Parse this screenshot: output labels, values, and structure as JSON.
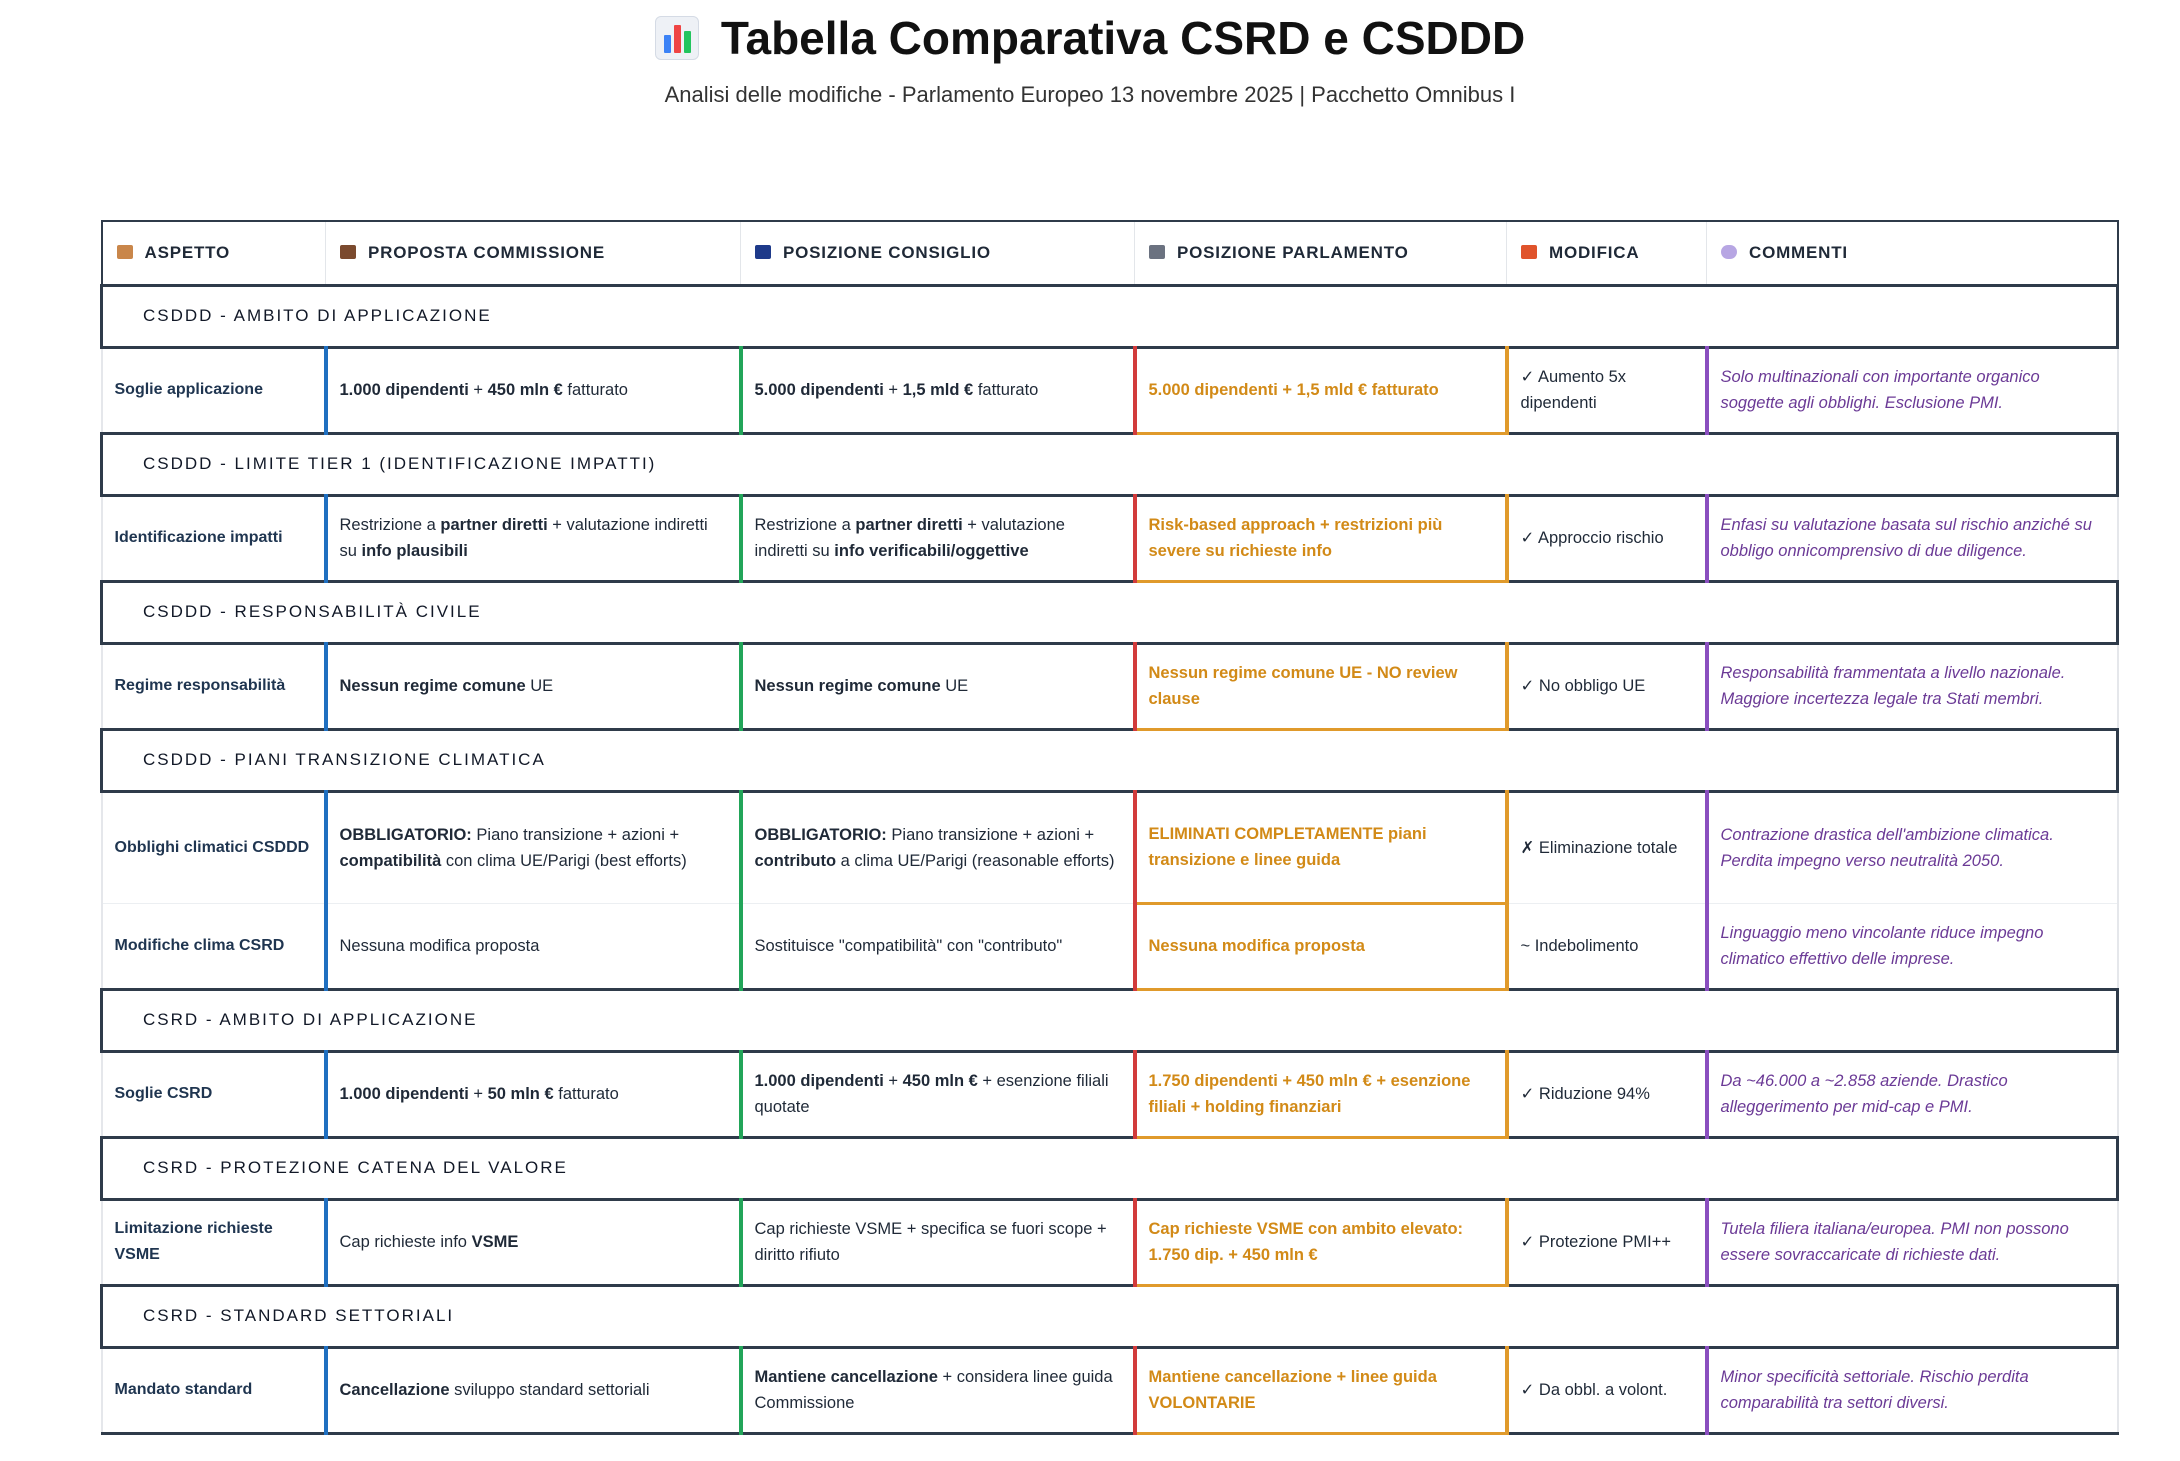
{
  "header": {
    "title": "Tabella Comparativa CSRD e CSDDD",
    "subtitle": "Analisi delle modifiche - Parlamento Europeo 13 novembre 2025 | Pacchetto Omnibus I"
  },
  "columns": [
    {
      "label": "ASPETTO",
      "icon": "clipboard-icon",
      "color": "#c9864a"
    },
    {
      "label": "PROPOSTA COMMISSIONE",
      "icon": "briefcase-icon",
      "color": "#7b4a2e"
    },
    {
      "label": "POSIZIONE CONSIGLIO",
      "icon": "eu-flag-icon",
      "color": "#1e3a8a"
    },
    {
      "label": "POSIZIONE PARLAMENTO",
      "icon": "classical-building-icon",
      "color": "#6b7280"
    },
    {
      "label": "MODIFICA",
      "icon": "pencil-icon",
      "color": "#e0532b"
    },
    {
      "label": "COMMENTI",
      "icon": "speech-bubble-icon",
      "color": "#b7a6e3"
    }
  ],
  "colors": {
    "border": "#2f3b4a",
    "commissione": "#1f6fc0",
    "consiglio": "#22a559",
    "parlamento_left": "#d23b3b",
    "parlamento_frame": "#e09a2b",
    "parlamento_text": "#d28a17",
    "commenti": "#8a4fbf"
  },
  "sections": [
    {
      "title": "CSDDD - AMBITO DI APPLICAZIONE",
      "rows": [
        {
          "aspetto": "Soglie applicazione",
          "commissione": "<b>1.000 dipendenti</b> + <b>450 mln €</b> fatturato",
          "consiglio": "<b>5.000 dipendenti</b> + <b>1,5 mld €</b> fatturato",
          "parlamento": "5.000 dipendenti + 1,5 mld € fatturato",
          "modifica": "✓ Aumento 5x dipendenti",
          "commenti": "Solo multinazionali con importante organico soggette agli obblighi. Esclusione PMI."
        }
      ]
    },
    {
      "title": "CSDDD - LIMITE TIER 1 (IDENTIFICAZIONE IMPATTI)",
      "rows": [
        {
          "aspetto": "Identificazione impatti",
          "commissione": "Restrizione a <b>partner diretti</b> + valutazione indiretti su <b>info plausibili</b>",
          "consiglio": "Restrizione a <b>partner diretti</b> + valutazione indiretti su <b>info verificabili/oggettive</b>",
          "parlamento": "<b>Risk-based approach</b> + <b>restrizioni più severe</b> su richieste info",
          "modifica": "✓ Approccio rischio",
          "commenti": "Enfasi su valutazione basata sul rischio anziché su obbligo onnicomprensivo di due diligence."
        }
      ]
    },
    {
      "title": "CSDDD - RESPONSABILITÀ CIVILE",
      "rows": [
        {
          "aspetto": "Regime responsabilità",
          "commissione": "<b>Nessun regime comune</b> UE",
          "consiglio": "<b>Nessun regime comune</b> UE",
          "parlamento": "<b>Nessun regime comune</b> UE - <b>NO review clause</b>",
          "modifica": "✓ No obbligo UE",
          "commenti": "Responsabilità frammentata a livello nazionale. Maggiore incertezza legale tra Stati membri."
        }
      ]
    },
    {
      "title": "CSDDD - PIANI TRANSIZIONE CLIMATICA",
      "rows": [
        {
          "aspetto": "Obblighi climatici CSDDD",
          "commissione": "<b>OBBLIGATORIO:</b> Piano transizione + azioni + <b>compatibilità</b> con clima UE/Parigi (best efforts)",
          "consiglio": "<b>OBBLIGATORIO:</b> Piano transizione + azioni + <b>contributo</b> a clima UE/Parigi (reasonable efforts)",
          "parlamento": "<b>ELIMINATI COMPLETAMENTE</b> piani transizione e linee guida",
          "modifica": "✗ Eliminazione totale",
          "commenti": "Contrazione drastica dell'ambizione climatica. Perdita impegno verso neutralità 2050."
        },
        {
          "aspetto": "Modifiche clima CSRD",
          "commissione": "Nessuna modifica proposta",
          "consiglio": "Sostituisce \"compatibilità\" con \"contributo\"",
          "parlamento": "Nessuna modifica proposta",
          "modifica": "~ Indebolimento",
          "commenti": "Linguaggio meno vincolante riduce impegno climatico effettivo delle imprese."
        }
      ]
    },
    {
      "title": "CSRD - AMBITO DI APPLICAZIONE",
      "rows": [
        {
          "aspetto": "Soglie CSRD",
          "commissione": "<b>1.000 dipendenti</b> + <b>50 mln €</b> fatturato",
          "consiglio": "<b>1.000 dipendenti</b> + <b>450 mln €</b> + esenzione filiali quotate",
          "parlamento": "<b>1.750 dipendenti</b> + <b>450 mln €</b> + esenzione filiali + <b>holding finanziari</b>",
          "modifica": "✓ Riduzione 94%",
          "commenti": "Da ~46.000 a ~2.858 aziende. Drastico alleggerimento per mid-cap e PMI."
        }
      ]
    },
    {
      "title": "CSRD - PROTEZIONE CATENA DEL VALORE",
      "rows": [
        {
          "aspetto": "Limitazione richieste VSME",
          "commissione": "Cap richieste info <b>VSME</b>",
          "consiglio": "Cap richieste VSME + specifica se fuori scope + diritto rifiuto",
          "parlamento": "Cap richieste VSME con <b>ambito elevato:</b> <b>1.750 dip. + 450 mln €</b>",
          "modifica": "✓ Protezione PMI++",
          "commenti": "Tutela filiera italiana/europea. PMI non possono essere sovraccaricate di richieste dati."
        }
      ]
    },
    {
      "title": "CSRD - STANDARD SETTORIALI",
      "rows": [
        {
          "aspetto": "Mandato standard",
          "commissione": "<b>Cancellazione</b> sviluppo standard settoriali",
          "consiglio": "<b>Mantiene cancellazione</b> + considera linee guida Commissione",
          "parlamento": "<b>Mantiene cancellazione</b> + <b>linee guida VOLONTARIE</b>",
          "modifica": "✓ Da obbl. a volont.",
          "commenti": "Minor specificità settoriale. Rischio perdita comparabilità tra settori diversi."
        }
      ]
    }
  ]
}
